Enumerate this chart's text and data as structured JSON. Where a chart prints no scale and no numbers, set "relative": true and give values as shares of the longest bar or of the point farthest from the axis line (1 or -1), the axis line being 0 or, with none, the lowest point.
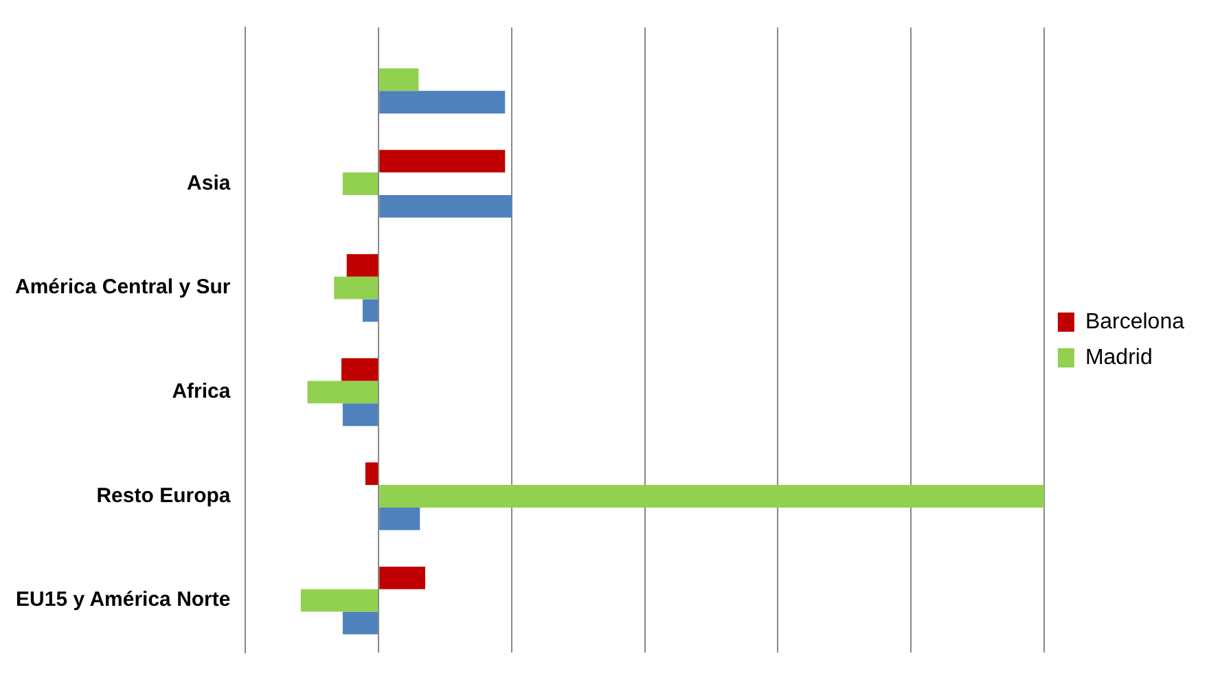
{
  "chart_data": {
    "type": "bar",
    "orientation": "horizontal",
    "relative": true,
    "grid": "x",
    "legend": "right",
    "categories": [
      null,
      "Asia",
      "América Central y Sur",
      "Africa",
      "Resto Europa",
      "EU15 y América Norte"
    ],
    "series": [
      {
        "name": "Barcelona",
        "color": "#c00000",
        "values": [
          null,
          0.19,
          -0.048,
          -0.056,
          -0.02,
          0.07
        ]
      },
      {
        "name": "Madrid",
        "color": "#92d050",
        "values": [
          0.06,
          -0.054,
          -0.067,
          -0.107,
          1.0,
          -0.117
        ]
      },
      {
        "color": "#4f81bd",
        "values": [
          0.19,
          0.2,
          -0.024,
          -0.054,
          0.062,
          -0.054
        ]
      }
    ]
  }
}
